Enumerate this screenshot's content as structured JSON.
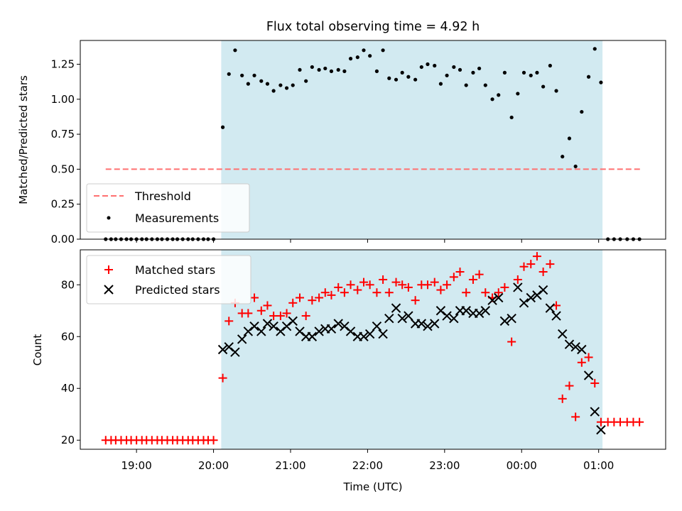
{
  "chart_data": [
    {
      "type": "scatter",
      "title": "Flux total observing time = 4.92 h",
      "xlabel": "",
      "ylabel": "Matched/Predicted stars",
      "ylim": [
        0,
        1.42
      ],
      "yticks": [
        "0.00",
        "0.25",
        "0.50",
        "0.75",
        "1.00",
        "1.25"
      ],
      "ytick_values": [
        0,
        0.25,
        0.5,
        0.75,
        1.0,
        1.25
      ],
      "xlim": [
        18.27,
        25.87
      ],
      "xtick_values": [
        19,
        20,
        21,
        22,
        23,
        24,
        25
      ],
      "shaded_interval": [
        20.1,
        25.05
      ],
      "shade_color": "#add8e6",
      "legend_position": "lower-left",
      "threshold": {
        "name": "Threshold",
        "value": 0.5,
        "x_range": [
          18.6,
          25.55
        ],
        "color": "#ff7070"
      },
      "series": [
        {
          "name": "Measurements",
          "color": "#000000",
          "x": [
            18.6,
            18.67,
            18.73,
            18.8,
            18.87,
            18.93,
            19.0,
            19.07,
            19.13,
            19.2,
            19.27,
            19.33,
            19.4,
            19.47,
            19.53,
            19.6,
            19.67,
            19.73,
            19.8,
            19.87,
            19.93,
            20.0,
            20.12,
            20.2,
            20.28,
            20.37,
            20.45,
            20.53,
            20.62,
            20.7,
            20.78,
            20.87,
            20.95,
            21.03,
            21.12,
            21.2,
            21.28,
            21.37,
            21.45,
            21.53,
            21.62,
            21.7,
            21.78,
            21.87,
            21.95,
            22.03,
            22.12,
            22.2,
            22.28,
            22.37,
            22.45,
            22.53,
            22.62,
            22.7,
            22.78,
            22.87,
            22.95,
            23.03,
            23.12,
            23.2,
            23.28,
            23.37,
            23.45,
            23.53,
            23.62,
            23.7,
            23.78,
            23.87,
            23.95,
            24.03,
            24.12,
            24.2,
            24.28,
            24.37,
            24.45,
            24.53,
            24.62,
            24.7,
            24.78,
            24.87,
            24.95,
            25.03,
            25.12,
            25.2,
            25.28,
            25.37,
            25.45,
            25.53
          ],
          "y": [
            0,
            0,
            0,
            0,
            0,
            0,
            0,
            0,
            0,
            0,
            0,
            0,
            0,
            0,
            0,
            0,
            0,
            0,
            0,
            0,
            0,
            0,
            0.8,
            1.18,
            1.35,
            1.17,
            1.11,
            1.17,
            1.13,
            1.11,
            1.06,
            1.1,
            1.08,
            1.1,
            1.21,
            1.13,
            1.23,
            1.21,
            1.22,
            1.2,
            1.21,
            1.2,
            1.29,
            1.3,
            1.35,
            1.31,
            1.2,
            1.35,
            1.15,
            1.14,
            1.19,
            1.16,
            1.14,
            1.23,
            1.25,
            1.24,
            1.11,
            1.17,
            1.23,
            1.21,
            1.1,
            1.19,
            1.22,
            1.1,
            1.0,
            1.03,
            1.19,
            0.87,
            1.04,
            1.19,
            1.17,
            1.19,
            1.09,
            1.24,
            1.06,
            0.59,
            0.72,
            0.52,
            0.91,
            1.16,
            1.36,
            1.12,
            0,
            0,
            0,
            0,
            0,
            0
          ]
        }
      ]
    },
    {
      "type": "scatter",
      "title": "",
      "xlabel": "Time (UTC)",
      "ylabel": "Count",
      "ylim": [
        16.5,
        93.5
      ],
      "yticks": [
        "20",
        "40",
        "60",
        "80"
      ],
      "ytick_values": [
        20,
        40,
        60,
        80
      ],
      "xlim": [
        18.27,
        25.87
      ],
      "xticks": [
        "19:00",
        "20:00",
        "21:00",
        "22:00",
        "23:00",
        "00:00",
        "01:00"
      ],
      "xtick_values": [
        19,
        20,
        21,
        22,
        23,
        24,
        25
      ],
      "shaded_interval": [
        20.1,
        25.05
      ],
      "shade_color": "#add8e6",
      "legend_position": "top-left",
      "series": [
        {
          "name": "Matched stars",
          "marker": "plus",
          "color": "#ff0000",
          "x": [
            18.6,
            18.67,
            18.73,
            18.8,
            18.87,
            18.93,
            19.0,
            19.07,
            19.13,
            19.2,
            19.27,
            19.33,
            19.4,
            19.47,
            19.53,
            19.6,
            19.67,
            19.73,
            19.8,
            19.87,
            19.93,
            20.0,
            20.12,
            20.2,
            20.28,
            20.37,
            20.45,
            20.53,
            20.62,
            20.7,
            20.78,
            20.87,
            20.95,
            21.03,
            21.12,
            21.2,
            21.28,
            21.37,
            21.45,
            21.53,
            21.62,
            21.7,
            21.78,
            21.87,
            21.95,
            22.03,
            22.12,
            22.2,
            22.28,
            22.37,
            22.45,
            22.53,
            22.62,
            22.7,
            22.78,
            22.87,
            22.95,
            23.03,
            23.12,
            23.2,
            23.28,
            23.37,
            23.45,
            23.53,
            23.62,
            23.7,
            23.78,
            23.87,
            23.95,
            24.03,
            24.12,
            24.2,
            24.28,
            24.37,
            24.45,
            24.53,
            24.62,
            24.7,
            24.78,
            24.87,
            24.95,
            25.03,
            25.12,
            25.2,
            25.28,
            25.37,
            25.45,
            25.53
          ],
          "y": [
            20,
            20,
            20,
            20,
            20,
            20,
            20,
            20,
            20,
            20,
            20,
            20,
            20,
            20,
            20,
            20,
            20,
            20,
            20,
            20,
            20,
            20,
            44,
            66,
            73,
            69,
            69,
            75,
            70,
            72,
            68,
            68,
            69,
            73,
            75,
            68,
            74,
            75,
            77,
            76,
            79,
            77,
            80,
            78,
            81,
            80,
            77,
            82,
            77,
            81,
            80,
            79,
            74,
            80,
            80,
            81,
            78,
            80,
            83,
            85,
            77,
            82,
            84,
            77,
            75,
            77,
            79,
            58,
            82,
            87,
            88,
            91,
            85,
            88,
            72,
            36,
            41,
            29,
            50,
            52,
            42,
            27,
            27,
            27,
            27,
            27,
            27,
            27
          ]
        },
        {
          "name": "Predicted stars",
          "marker": "x",
          "color": "#000000",
          "x": [
            20.12,
            20.2,
            20.28,
            20.37,
            20.45,
            20.53,
            20.62,
            20.7,
            20.78,
            20.87,
            20.95,
            21.03,
            21.12,
            21.2,
            21.28,
            21.37,
            21.45,
            21.53,
            21.62,
            21.7,
            21.78,
            21.87,
            21.95,
            22.03,
            22.12,
            22.2,
            22.28,
            22.37,
            22.45,
            22.53,
            22.62,
            22.7,
            22.78,
            22.87,
            22.95,
            23.03,
            23.12,
            23.2,
            23.28,
            23.37,
            23.45,
            23.53,
            23.62,
            23.7,
            23.78,
            23.87,
            23.95,
            24.03,
            24.12,
            24.2,
            24.28,
            24.37,
            24.45,
            24.53,
            24.62,
            24.7,
            24.78,
            24.87,
            24.95,
            25.03
          ],
          "y": [
            55,
            56,
            54,
            59,
            62,
            64,
            62,
            65,
            64,
            62,
            64,
            66,
            62,
            60,
            60,
            62,
            63,
            63,
            65,
            64,
            62,
            60,
            60,
            61,
            64,
            61,
            67,
            71,
            67,
            68,
            65,
            65,
            64,
            65,
            70,
            68,
            67,
            70,
            70,
            69,
            69,
            70,
            74,
            75,
            66,
            67,
            79,
            73,
            75,
            76,
            78,
            71,
            68,
            61,
            57,
            56,
            55,
            45,
            31,
            24
          ]
        }
      ]
    }
  ]
}
